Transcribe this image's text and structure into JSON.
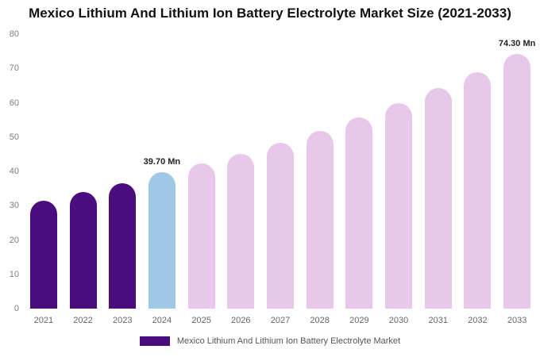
{
  "title": "Mexico Lithium And Lithium Ion Battery Electrolyte Market Size (2021-2033)",
  "legend": {
    "label": "Mexico Lithium And Lithium Ion Battery Electrolyte Market",
    "swatch_color": "#490d7d"
  },
  "colors": {
    "historical_bar": "#490d7d",
    "current_year_bar": "#9fc8e6",
    "forecast_bar": "#e9c7ea",
    "title_text": "#111111",
    "axis_text": "#7d7d7d",
    "background": "#ffffff"
  },
  "chart_data": {
    "type": "bar",
    "title": "Mexico Lithium And Lithium Ion Battery Electrolyte Market Size (2021-2033)",
    "unit": "Mn",
    "categories": [
      "2021",
      "2022",
      "2023",
      "2024",
      "2025",
      "2026",
      "2027",
      "2028",
      "2029",
      "2030",
      "2031",
      "2032",
      "2033"
    ],
    "values": [
      31.5,
      34.1,
      36.5,
      39.7,
      42.3,
      45.2,
      48.4,
      51.9,
      55.7,
      59.8,
      64.2,
      69.0,
      74.3
    ],
    "bar_colors": [
      "#490d7d",
      "#490d7d",
      "#490d7d",
      "#9fc8e6",
      "#e9c7ea",
      "#e9c7ea",
      "#e9c7ea",
      "#e9c7ea",
      "#e9c7ea",
      "#e9c7ea",
      "#e9c7ea",
      "#e9c7ea",
      "#e9c7ea"
    ],
    "data_labels": {
      "2024": "39.70 Mn",
      "2033": "74.30 Mn"
    },
    "xlabel": "",
    "ylabel": "",
    "ylim": [
      0,
      80
    ],
    "yticks": [
      0,
      10,
      20,
      30,
      40,
      50,
      60,
      70,
      80
    ],
    "grid": false,
    "legend_entries": [
      "Mexico Lithium And Lithium Ion Battery Electrolyte Market"
    ],
    "legend_position": "bottom"
  }
}
